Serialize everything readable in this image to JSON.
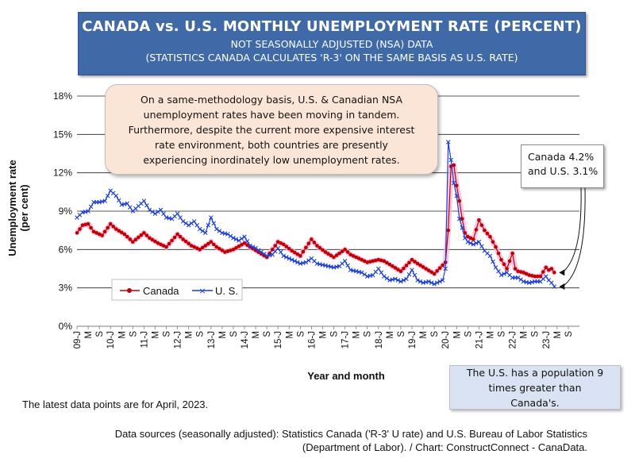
{
  "title": {
    "main": "CANADA vs. U.S. MONTHLY UNEMPLOYMENT RATE (PERCENT)",
    "line2": "NOT SEASONALLY ADJUSTED (NSA) DATA",
    "line3": "(STATISTICS CANADA CALCULATES 'R-3' ON THE SAME BASIS AS U.S. RATE)"
  },
  "note": "On a same-methodology basis, U.S. & Canadian NSA unemployment rates have been moving in tandem. Furthermore, despite the current more expensive interest rate environment, both countries are presently experiencing inordinately low unemployment rates.",
  "callout": "Canada 4.2%\nand U.S. 3.1%",
  "population_note": "The U.S. has a population 9 times greater than Canada's.",
  "latest_note": "The latest data points are for April, 2023.",
  "sources": "Data sources (seasonally adjusted): Statistics Canada ('R-3' U rate) and U.S. Bureau of Labor Statistics (Department of Labor). / Chart: ConstructConnect - CanaData.",
  "colors": {
    "title_bg": "#3f6aa7",
    "canada": "#c00000",
    "canada_glow": "#f2b8e0",
    "us": "#1f3fd0",
    "note_bg": "#fbe5d6",
    "pop_bg": "#dae3f3"
  },
  "chart_data": {
    "type": "line",
    "xlabel": "Year and month",
    "ylabel": "Unemployment rate (per cent)",
    "ylim": [
      0,
      18
    ],
    "yticks": [
      "0%",
      "3%",
      "6%",
      "9%",
      "12%",
      "15%",
      "18%"
    ],
    "grid": true,
    "legend_position": "left, below middle",
    "x_tick_labels": [
      "09-J",
      "M",
      "S",
      "10-J",
      "M",
      "S",
      "11-J",
      "M",
      "S",
      "12-J",
      "M",
      "S",
      "13-J",
      "M",
      "S",
      "14-J",
      "M",
      "S",
      "15-J",
      "M",
      "S",
      "16-J",
      "M",
      "S",
      "17-J",
      "M",
      "S",
      "18-J",
      "M",
      "S",
      "19-J",
      "M",
      "S",
      "20-J",
      "M",
      "S",
      "21-J",
      "M",
      "S",
      "22-J",
      "M",
      "S",
      "23-J",
      "M",
      "S"
    ],
    "series": [
      {
        "name": "Canada",
        "anchors": [
          [
            0,
            7.3
          ],
          [
            2,
            7.9
          ],
          [
            4,
            8.0
          ],
          [
            6,
            7.4
          ],
          [
            9,
            7.1
          ],
          [
            12,
            8.0
          ],
          [
            14,
            7.6
          ],
          [
            17,
            7.2
          ],
          [
            20,
            6.6
          ],
          [
            24,
            7.3
          ],
          [
            26,
            6.9
          ],
          [
            29,
            6.5
          ],
          [
            32,
            6.2
          ],
          [
            36,
            7.2
          ],
          [
            38,
            6.8
          ],
          [
            41,
            6.3
          ],
          [
            44,
            6.0
          ],
          [
            48,
            6.6
          ],
          [
            50,
            6.2
          ],
          [
            53,
            5.8
          ],
          [
            56,
            6.0
          ],
          [
            60,
            6.5
          ],
          [
            62,
            6.2
          ],
          [
            65,
            5.8
          ],
          [
            68,
            5.4
          ],
          [
            72,
            6.6
          ],
          [
            74,
            6.4
          ],
          [
            77,
            5.9
          ],
          [
            80,
            5.5
          ],
          [
            84,
            6.8
          ],
          [
            86,
            6.3
          ],
          [
            89,
            5.8
          ],
          [
            92,
            5.4
          ],
          [
            96,
            6.0
          ],
          [
            98,
            5.6
          ],
          [
            101,
            5.3
          ],
          [
            104,
            5.0
          ],
          [
            108,
            5.2
          ],
          [
            110,
            5.1
          ],
          [
            113,
            4.7
          ],
          [
            116,
            4.3
          ],
          [
            120,
            5.2
          ],
          [
            122,
            4.9
          ],
          [
            125,
            4.5
          ],
          [
            128,
            4.1
          ],
          [
            132,
            5.0
          ],
          [
            133,
            7.5
          ],
          [
            134,
            12.5
          ],
          [
            135,
            12.6
          ],
          [
            136,
            11.0
          ],
          [
            137,
            9.8
          ],
          [
            138,
            8.4
          ],
          [
            139,
            7.3
          ],
          [
            140,
            7.0
          ],
          [
            142,
            6.8
          ],
          [
            144,
            8.3
          ],
          [
            145,
            7.9
          ],
          [
            146,
            7.5
          ],
          [
            148,
            7.0
          ],
          [
            150,
            6.2
          ],
          [
            152,
            5.2
          ],
          [
            154,
            4.5
          ],
          [
            156,
            5.7
          ],
          [
            157,
            4.5
          ],
          [
            158,
            4.3
          ],
          [
            160,
            4.2
          ],
          [
            162,
            4.0
          ],
          [
            164,
            3.9
          ],
          [
            166,
            3.9
          ],
          [
            168,
            4.6
          ],
          [
            169,
            4.4
          ],
          [
            170,
            4.5
          ],
          [
            171,
            4.2
          ]
        ]
      },
      {
        "name": "U. S.",
        "anchors": [
          [
            0,
            8.5
          ],
          [
            2,
            8.9
          ],
          [
            4,
            9.0
          ],
          [
            6,
            9.7
          ],
          [
            8,
            9.7
          ],
          [
            10,
            9.8
          ],
          [
            12,
            10.6
          ],
          [
            14,
            10.2
          ],
          [
            16,
            9.5
          ],
          [
            18,
            9.6
          ],
          [
            20,
            9.0
          ],
          [
            22,
            9.4
          ],
          [
            24,
            9.8
          ],
          [
            26,
            9.1
          ],
          [
            28,
            8.8
          ],
          [
            30,
            9.1
          ],
          [
            32,
            8.5
          ],
          [
            34,
            8.4
          ],
          [
            36,
            8.8
          ],
          [
            38,
            8.2
          ],
          [
            40,
            7.9
          ],
          [
            42,
            8.2
          ],
          [
            44,
            7.6
          ],
          [
            46,
            7.3
          ],
          [
            48,
            8.5
          ],
          [
            50,
            7.6
          ],
          [
            52,
            7.3
          ],
          [
            54,
            7.2
          ],
          [
            56,
            6.9
          ],
          [
            58,
            6.7
          ],
          [
            60,
            7.0
          ],
          [
            62,
            6.3
          ],
          [
            64,
            6.1
          ],
          [
            66,
            5.8
          ],
          [
            68,
            5.5
          ],
          [
            70,
            5.6
          ],
          [
            72,
            6.1
          ],
          [
            74,
            5.5
          ],
          [
            76,
            5.3
          ],
          [
            78,
            5.1
          ],
          [
            80,
            4.9
          ],
          [
            82,
            5.0
          ],
          [
            84,
            5.3
          ],
          [
            86,
            4.9
          ],
          [
            88,
            4.8
          ],
          [
            90,
            4.7
          ],
          [
            92,
            4.6
          ],
          [
            94,
            4.7
          ],
          [
            96,
            5.1
          ],
          [
            98,
            4.4
          ],
          [
            100,
            4.3
          ],
          [
            102,
            4.2
          ],
          [
            104,
            3.9
          ],
          [
            106,
            4.0
          ],
          [
            108,
            4.5
          ],
          [
            110,
            3.9
          ],
          [
            112,
            3.6
          ],
          [
            114,
            3.7
          ],
          [
            116,
            3.5
          ],
          [
            118,
            3.7
          ],
          [
            120,
            4.4
          ],
          [
            122,
            3.6
          ],
          [
            124,
            3.4
          ],
          [
            126,
            3.5
          ],
          [
            128,
            3.3
          ],
          [
            130,
            3.5
          ],
          [
            131,
            3.6
          ],
          [
            132,
            4.5
          ],
          [
            133,
            14.4
          ],
          [
            134,
            13.0
          ],
          [
            135,
            11.2
          ],
          [
            136,
            10.2
          ],
          [
            137,
            8.4
          ],
          [
            138,
            7.7
          ],
          [
            139,
            6.9
          ],
          [
            140,
            6.6
          ],
          [
            142,
            6.4
          ],
          [
            144,
            6.6
          ],
          [
            146,
            5.9
          ],
          [
            148,
            5.5
          ],
          [
            150,
            4.6
          ],
          [
            152,
            4.0
          ],
          [
            154,
            4.2
          ],
          [
            156,
            3.8
          ],
          [
            158,
            3.8
          ],
          [
            160,
            3.5
          ],
          [
            162,
            3.4
          ],
          [
            164,
            3.5
          ],
          [
            166,
            3.5
          ],
          [
            168,
            3.9
          ],
          [
            169,
            3.6
          ],
          [
            170,
            3.4
          ],
          [
            171,
            3.1
          ]
        ]
      }
    ]
  }
}
